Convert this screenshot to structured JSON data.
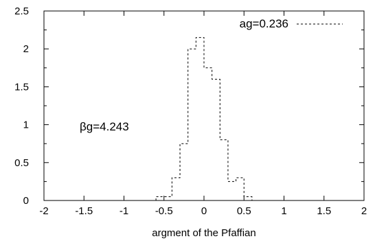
{
  "chart_data": {
    "type": "line",
    "title": "",
    "xlabel": "argment of the Pfaffian",
    "ylabel": "",
    "xlim": [
      -2,
      2
    ],
    "ylim": [
      0,
      2.5
    ],
    "x_ticks": [
      "-2",
      "-1.5",
      "-1",
      "-0.5",
      "0",
      "0.5",
      "1",
      "1.5",
      "2"
    ],
    "y_ticks": [
      "0",
      "0.5",
      "1",
      "1.5",
      "2",
      "2.5"
    ],
    "grid": false,
    "legend_position": "top-right",
    "annotation": "βg=4.243",
    "series": [
      {
        "name": "ag=0.236",
        "style": "dashed-step",
        "bin_width": 0.1,
        "bins": [
          {
            "x0": -0.6,
            "x1": -0.5,
            "y": 0.05
          },
          {
            "x0": -0.5,
            "x1": -0.4,
            "y": 0.05
          },
          {
            "x0": -0.4,
            "x1": -0.3,
            "y": 0.3
          },
          {
            "x0": -0.3,
            "x1": -0.2,
            "y": 0.75
          },
          {
            "x0": -0.2,
            "x1": -0.1,
            "y": 2.0
          },
          {
            "x0": -0.1,
            "x1": 0.0,
            "y": 2.15
          },
          {
            "x0": 0.0,
            "x1": 0.1,
            "y": 1.75
          },
          {
            "x0": 0.1,
            "x1": 0.2,
            "y": 1.6
          },
          {
            "x0": 0.2,
            "x1": 0.3,
            "y": 0.8
          },
          {
            "x0": 0.3,
            "x1": 0.4,
            "y": 0.25
          },
          {
            "x0": 0.4,
            "x1": 0.5,
            "y": 0.3
          },
          {
            "x0": 0.5,
            "x1": 0.6,
            "y": 0.05
          }
        ]
      }
    ]
  }
}
